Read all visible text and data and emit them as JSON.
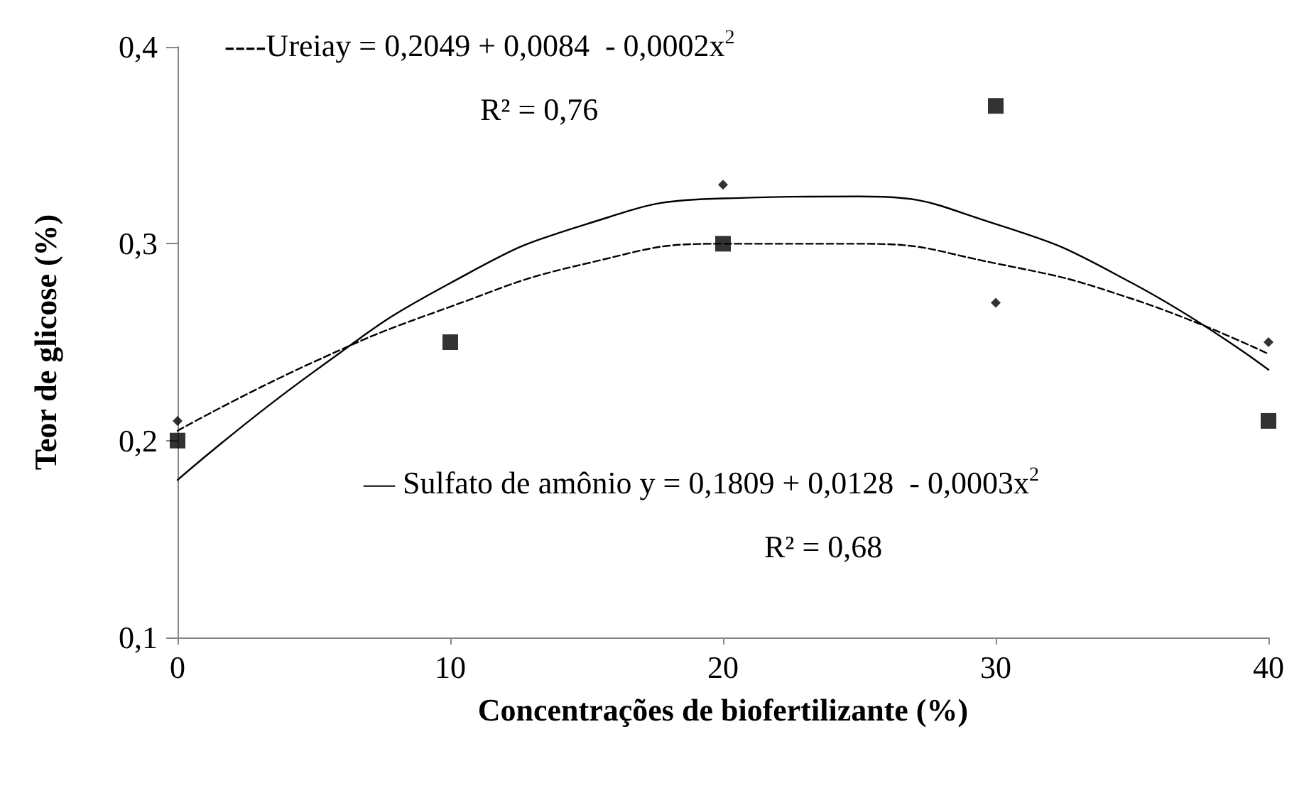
{
  "chart_data": {
    "type": "scatter",
    "xlabel": "Concentrações de biofertilizante (%)",
    "ylabel": "Teor de glicose (%)",
    "xlim": [
      0,
      40
    ],
    "xticks": [
      0,
      10,
      20,
      30,
      40
    ],
    "ylim": [
      0.1,
      0.4
    ],
    "yticks": [
      {
        "value": 0.1,
        "label": "0,1"
      },
      {
        "value": 0.2,
        "label": "0,2"
      },
      {
        "value": 0.3,
        "label": "0,3"
      },
      {
        "value": 0.4,
        "label": "0,4"
      }
    ],
    "grid": false,
    "series": [
      {
        "type": "scatter",
        "marker": "diamond",
        "color": "#000000",
        "x": [
          0,
          20,
          30,
          40
        ],
        "values": [
          0.21,
          0.33,
          0.27,
          0.25
        ]
      },
      {
        "type": "scatter",
        "marker": "square",
        "color": "#000000",
        "x": [
          0,
          10,
          20,
          30,
          40
        ],
        "values": [
          0.2,
          0.25,
          0.3,
          0.37,
          0.21
        ]
      },
      {
        "type": "line",
        "line_style": "dashed",
        "marker": "none",
        "color": "#000000",
        "x": [
          0,
          5,
          10,
          15,
          20,
          25,
          30,
          35,
          40
        ],
        "values": [
          0.205,
          0.24,
          0.268,
          0.29,
          0.3,
          0.3,
          0.29,
          0.272,
          0.244
        ]
      },
      {
        "type": "line",
        "line_style": "solid",
        "marker": "none",
        "color": "#000000",
        "x": [
          0,
          5,
          10,
          15,
          20,
          25,
          30,
          35,
          40
        ],
        "values": [
          0.18,
          0.235,
          0.28,
          0.31,
          0.323,
          0.324,
          0.31,
          0.28,
          0.236
        ]
      }
    ],
    "annotations": [
      "----Ureiay = 0,2049 + 0,0084  - 0,0002x$^{2}$",
      "R² = 0,76",
      "— Sulfato de amônio y = 0,1809 + 0,0128  - 0,0003x$^{2}$",
      "R² = 0,68"
    ]
  }
}
